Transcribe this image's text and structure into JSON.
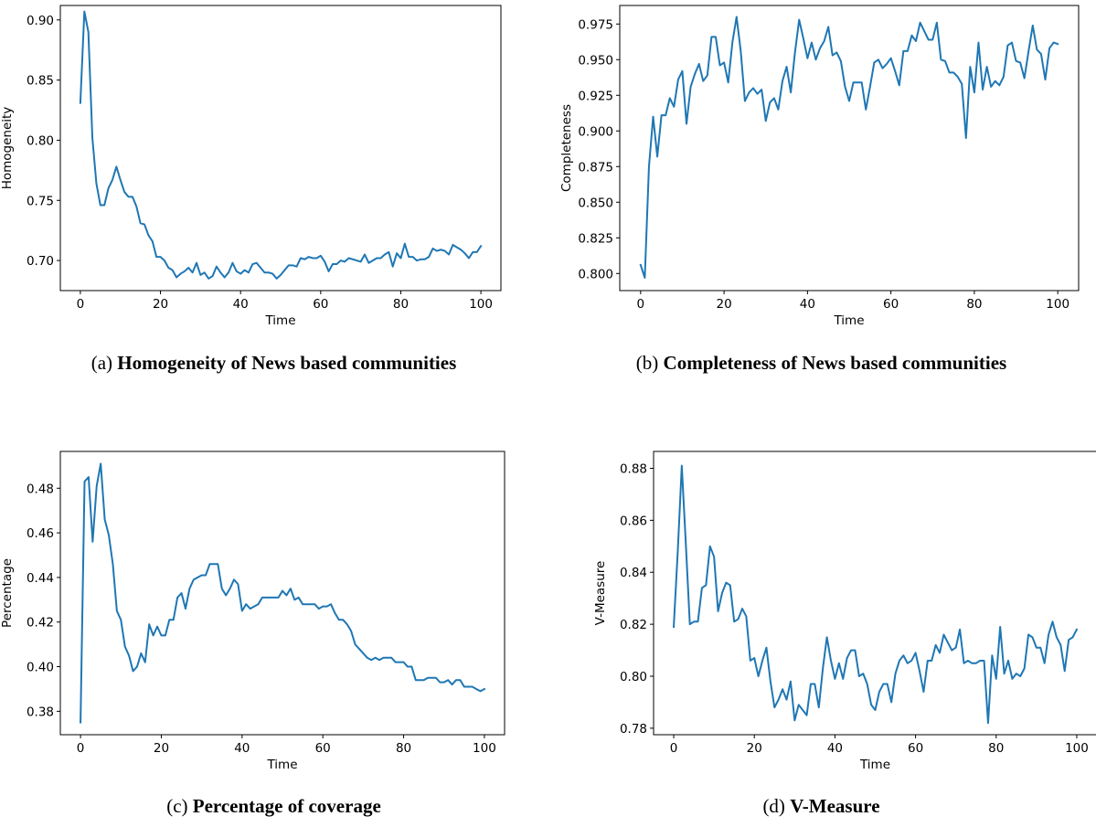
{
  "charts": [
    {
      "caption": {
        "prefix": "(a) ",
        "bold": "Homogeneity of News based communities"
      },
      "chart_data": {
        "type": "line",
        "xlabel": "Time",
        "ylabel": "Homogeneity",
        "xlim": [
          -5,
          105
        ],
        "ylim": [
          0.675,
          0.912
        ],
        "xticks": [
          0,
          20,
          40,
          60,
          80,
          100
        ],
        "xtick_labels": [
          "0",
          "20",
          "40",
          "60",
          "80",
          "100"
        ],
        "yticks": [
          0.7,
          0.75,
          0.8,
          0.85,
          0.9
        ],
        "ytick_labels": [
          "0.70",
          "0.75",
          "0.80",
          "0.85",
          "0.90"
        ],
        "line_color": "#1f77b4",
        "series": [
          {
            "x": [
              0,
              1,
              2,
              3,
              4,
              5,
              6,
              7,
              8,
              9,
              10,
              11,
              12,
              13,
              14,
              15,
              16,
              17,
              18,
              19,
              20,
              21,
              22,
              23,
              24,
              25,
              26,
              27,
              28,
              29,
              30,
              31,
              32,
              33,
              34,
              35,
              36,
              37,
              38,
              39,
              40,
              41,
              42,
              43,
              44,
              45,
              46,
              47,
              48,
              49,
              50,
              51,
              52,
              53,
              54,
              55,
              56,
              57,
              58,
              59,
              60,
              61,
              62,
              63,
              64,
              65,
              66,
              67,
              68,
              69,
              70,
              71,
              72,
              73,
              74,
              75,
              76,
              77,
              78,
              79,
              80,
              81,
              82,
              83,
              84,
              85,
              86,
              87,
              88,
              89,
              90,
              91,
              92,
              93,
              94,
              95,
              96,
              97,
              98,
              99,
              100
            ],
            "y": [
              0.831,
              0.907,
              0.89,
              0.802,
              0.764,
              0.746,
              0.746,
              0.76,
              0.767,
              0.778,
              0.767,
              0.757,
              0.753,
              0.753,
              0.745,
              0.731,
              0.73,
              0.721,
              0.716,
              0.703,
              0.703,
              0.7,
              0.694,
              0.692,
              0.686,
              0.689,
              0.691,
              0.694,
              0.69,
              0.698,
              0.688,
              0.69,
              0.685,
              0.687,
              0.695,
              0.69,
              0.686,
              0.69,
              0.698,
              0.691,
              0.689,
              0.692,
              0.69,
              0.697,
              0.698,
              0.694,
              0.69,
              0.69,
              0.689,
              0.685,
              0.688,
              0.692,
              0.696,
              0.696,
              0.695,
              0.702,
              0.701,
              0.703,
              0.702,
              0.702,
              0.704,
              0.699,
              0.691,
              0.697,
              0.697,
              0.7,
              0.699,
              0.702,
              0.701,
              0.7,
              0.699,
              0.705,
              0.698,
              0.7,
              0.702,
              0.702,
              0.705,
              0.707,
              0.695,
              0.706,
              0.702,
              0.714,
              0.703,
              0.703,
              0.7,
              0.701,
              0.701,
              0.703,
              0.71,
              0.708,
              0.709,
              0.708,
              0.705,
              0.713,
              0.711,
              0.709,
              0.706,
              0.702,
              0.707,
              0.707,
              0.712
            ]
          }
        ]
      }
    },
    {
      "caption": {
        "prefix": "(b) ",
        "bold": "Completeness of News based communities"
      },
      "chart_data": {
        "type": "line",
        "xlabel": "Time",
        "ylabel": "Completeness",
        "xlim": [
          -5,
          105
        ],
        "ylim": [
          0.788,
          0.988
        ],
        "xticks": [
          0,
          20,
          40,
          60,
          80,
          100
        ],
        "xtick_labels": [
          "0",
          "20",
          "40",
          "60",
          "80",
          "100"
        ],
        "yticks": [
          0.8,
          0.825,
          0.85,
          0.875,
          0.9,
          0.925,
          0.95,
          0.975
        ],
        "ytick_labels": [
          "0.800",
          "0.825",
          "0.850",
          "0.875",
          "0.900",
          "0.925",
          "0.950",
          "0.975"
        ],
        "line_color": "#1f77b4",
        "series": [
          {
            "x": [
              0,
              1,
              2,
              3,
              4,
              5,
              6,
              7,
              8,
              9,
              10,
              11,
              12,
              13,
              14,
              15,
              16,
              17,
              18,
              19,
              20,
              21,
              22,
              23,
              24,
              25,
              26,
              27,
              28,
              29,
              30,
              31,
              32,
              33,
              34,
              35,
              36,
              37,
              38,
              39,
              40,
              41,
              42,
              43,
              44,
              45,
              46,
              47,
              48,
              49,
              50,
              51,
              52,
              53,
              54,
              55,
              56,
              57,
              58,
              59,
              60,
              61,
              62,
              63,
              64,
              65,
              66,
              67,
              68,
              69,
              70,
              71,
              72,
              73,
              74,
              75,
              76,
              77,
              78,
              79,
              80,
              81,
              82,
              83,
              84,
              85,
              86,
              87,
              88,
              89,
              90,
              91,
              92,
              93,
              94,
              95,
              96,
              97,
              98,
              99,
              100
            ],
            "y": [
              0.806,
              0.797,
              0.875,
              0.91,
              0.882,
              0.911,
              0.911,
              0.923,
              0.917,
              0.936,
              0.942,
              0.905,
              0.931,
              0.94,
              0.947,
              0.935,
              0.939,
              0.966,
              0.966,
              0.946,
              0.948,
              0.934,
              0.962,
              0.98,
              0.956,
              0.921,
              0.927,
              0.93,
              0.926,
              0.929,
              0.907,
              0.92,
              0.923,
              0.915,
              0.935,
              0.945,
              0.927,
              0.955,
              0.978,
              0.965,
              0.951,
              0.962,
              0.95,
              0.958,
              0.963,
              0.973,
              0.953,
              0.955,
              0.949,
              0.931,
              0.921,
              0.934,
              0.934,
              0.934,
              0.915,
              0.931,
              0.948,
              0.95,
              0.944,
              0.947,
              0.951,
              0.942,
              0.932,
              0.956,
              0.956,
              0.967,
              0.963,
              0.976,
              0.97,
              0.964,
              0.964,
              0.976,
              0.95,
              0.949,
              0.941,
              0.941,
              0.938,
              0.933,
              0.895,
              0.945,
              0.927,
              0.962,
              0.929,
              0.945,
              0.931,
              0.935,
              0.932,
              0.938,
              0.96,
              0.962,
              0.949,
              0.948,
              0.937,
              0.956,
              0.974,
              0.957,
              0.954,
              0.936,
              0.958,
              0.962,
              0.961
            ]
          }
        ]
      }
    },
    {
      "caption": {
        "prefix": "(c) ",
        "bold": "Percentage of coverage"
      },
      "chart_data": {
        "type": "line",
        "xlabel": "Time",
        "ylabel": "Percentage",
        "xlim": [
          -5,
          105
        ],
        "ylim": [
          0.3695,
          0.4965
        ],
        "xticks": [
          0,
          20,
          40,
          60,
          80,
          100
        ],
        "xtick_labels": [
          "0",
          "20",
          "40",
          "60",
          "80",
          "100"
        ],
        "yticks": [
          0.38,
          0.4,
          0.42,
          0.44,
          0.46,
          0.48
        ],
        "ytick_labels": [
          "0.38",
          "0.40",
          "0.42",
          "0.44",
          "0.46",
          "0.48"
        ],
        "line_color": "#1f77b4",
        "series": [
          {
            "x": [
              0,
              1,
              2,
              3,
              4,
              5,
              6,
              7,
              8,
              9,
              10,
              11,
              12,
              13,
              14,
              15,
              16,
              17,
              18,
              19,
              20,
              21,
              22,
              23,
              24,
              25,
              26,
              27,
              28,
              29,
              30,
              31,
              32,
              33,
              34,
              35,
              36,
              37,
              38,
              39,
              40,
              41,
              42,
              43,
              44,
              45,
              46,
              47,
              48,
              49,
              50,
              51,
              52,
              53,
              54,
              55,
              56,
              57,
              58,
              59,
              60,
              61,
              62,
              63,
              64,
              65,
              66,
              67,
              68,
              69,
              70,
              71,
              72,
              73,
              74,
              75,
              76,
              77,
              78,
              79,
              80,
              81,
              82,
              83,
              84,
              85,
              86,
              87,
              88,
              89,
              90,
              91,
              92,
              93,
              94,
              95,
              96,
              97,
              98,
              99,
              100
            ],
            "y": [
              0.375,
              0.483,
              0.485,
              0.456,
              0.481,
              0.491,
              0.466,
              0.459,
              0.446,
              0.425,
              0.421,
              0.409,
              0.405,
              0.398,
              0.4,
              0.406,
              0.402,
              0.419,
              0.414,
              0.418,
              0.414,
              0.414,
              0.421,
              0.421,
              0.431,
              0.433,
              0.426,
              0.435,
              0.439,
              0.44,
              0.441,
              0.441,
              0.446,
              0.446,
              0.446,
              0.435,
              0.432,
              0.435,
              0.439,
              0.437,
              0.425,
              0.428,
              0.426,
              0.427,
              0.428,
              0.431,
              0.431,
              0.431,
              0.431,
              0.431,
              0.434,
              0.432,
              0.435,
              0.43,
              0.431,
              0.428,
              0.428,
              0.428,
              0.428,
              0.426,
              0.427,
              0.427,
              0.428,
              0.424,
              0.421,
              0.421,
              0.419,
              0.416,
              0.41,
              0.408,
              0.406,
              0.404,
              0.403,
              0.404,
              0.403,
              0.404,
              0.404,
              0.404,
              0.402,
              0.402,
              0.402,
              0.4,
              0.4,
              0.394,
              0.394,
              0.394,
              0.395,
              0.395,
              0.395,
              0.393,
              0.393,
              0.394,
              0.392,
              0.394,
              0.394,
              0.391,
              0.391,
              0.391,
              0.39,
              0.389,
              0.39
            ]
          }
        ]
      }
    },
    {
      "caption": {
        "prefix": "(d) ",
        "bold": "V-Measure"
      },
      "chart_data": {
        "type": "line",
        "xlabel": "Time",
        "ylabel": "V-Measure",
        "xlim": [
          -5,
          105
        ],
        "ylim": [
          0.7775,
          0.8865
        ],
        "xticks": [
          0,
          20,
          40,
          60,
          80,
          100
        ],
        "xtick_labels": [
          "0",
          "20",
          "40",
          "60",
          "80",
          "100"
        ],
        "yticks": [
          0.78,
          0.8,
          0.82,
          0.84,
          0.86,
          0.88
        ],
        "ytick_labels": [
          "0.78",
          "0.80",
          "0.82",
          "0.84",
          "0.86",
          "0.88"
        ],
        "line_color": "#1f77b4",
        "series": [
          {
            "x": [
              0,
              1,
              2,
              3,
              4,
              5,
              6,
              7,
              8,
              9,
              10,
              11,
              12,
              13,
              14,
              15,
              16,
              17,
              18,
              19,
              20,
              21,
              22,
              23,
              24,
              25,
              26,
              27,
              28,
              29,
              30,
              31,
              32,
              33,
              34,
              35,
              36,
              37,
              38,
              39,
              40,
              41,
              42,
              43,
              44,
              45,
              46,
              47,
              48,
              49,
              50,
              51,
              52,
              53,
              54,
              55,
              56,
              57,
              58,
              59,
              60,
              61,
              62,
              63,
              64,
              65,
              66,
              67,
              68,
              69,
              70,
              71,
              72,
              73,
              74,
              75,
              76,
              77,
              78,
              79,
              80,
              81,
              82,
              83,
              84,
              85,
              86,
              87,
              88,
              89,
              90,
              91,
              92,
              93,
              94,
              95,
              96,
              97,
              98,
              99,
              100
            ],
            "y": [
              0.819,
              0.848,
              0.881,
              0.851,
              0.82,
              0.821,
              0.821,
              0.834,
              0.835,
              0.85,
              0.846,
              0.825,
              0.832,
              0.836,
              0.835,
              0.821,
              0.822,
              0.826,
              0.823,
              0.806,
              0.807,
              0.8,
              0.806,
              0.811,
              0.798,
              0.788,
              0.791,
              0.795,
              0.791,
              0.798,
              0.783,
              0.789,
              0.787,
              0.785,
              0.797,
              0.797,
              0.788,
              0.803,
              0.815,
              0.806,
              0.799,
              0.805,
              0.799,
              0.807,
              0.81,
              0.81,
              0.8,
              0.801,
              0.797,
              0.789,
              0.787,
              0.794,
              0.797,
              0.797,
              0.79,
              0.801,
              0.806,
              0.808,
              0.805,
              0.806,
              0.809,
              0.802,
              0.794,
              0.806,
              0.806,
              0.812,
              0.809,
              0.816,
              0.813,
              0.81,
              0.811,
              0.818,
              0.805,
              0.806,
              0.805,
              0.805,
              0.806,
              0.806,
              0.782,
              0.808,
              0.799,
              0.819,
              0.801,
              0.806,
              0.799,
              0.801,
              0.8,
              0.803,
              0.816,
              0.815,
              0.811,
              0.811,
              0.805,
              0.816,
              0.821,
              0.815,
              0.812,
              0.802,
              0.814,
              0.815,
              0.818
            ]
          }
        ]
      }
    }
  ]
}
